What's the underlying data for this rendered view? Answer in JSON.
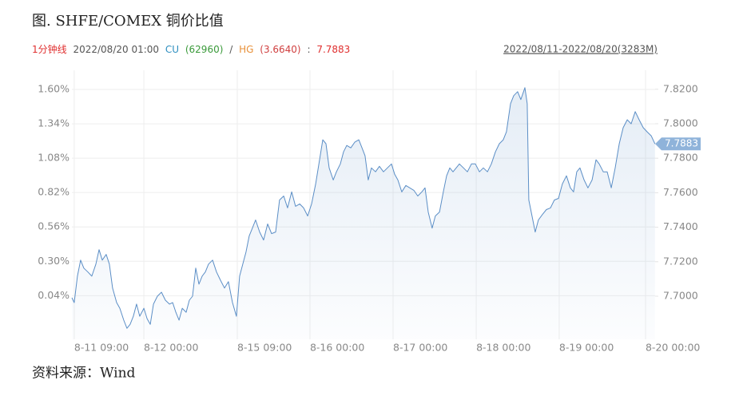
{
  "chart_data": {
    "type": "line",
    "title": "图. SHFE/COMEX 铜价比值",
    "info": {
      "period": "1分钟线",
      "time": "2022/08/20 01:00",
      "cu_label": "CU",
      "cu": "(62960)",
      "sep": "/",
      "hg_label": "HG",
      "hg": "(3.6640)",
      "colon": ":",
      "ratio": "7.7883"
    },
    "range": "2022/08/11-2022/08/20(3283M)",
    "source": "资料来源：Wind",
    "grid": true,
    "xlim": [
      0,
      3283
    ],
    "xticks": [
      {
        "value": 13,
        "label": "8-11 09:00"
      },
      {
        "value": 405,
        "label": "8-12 00:00"
      },
      {
        "value": 931,
        "label": "8-15 09:00"
      },
      {
        "value": 1340,
        "label": "8-16 00:00"
      },
      {
        "value": 1808,
        "label": "8-17 00:00"
      },
      {
        "value": 2276,
        "label": "8-18 00:00"
      },
      {
        "value": 2743,
        "label": "8-19 00:00"
      },
      {
        "value": 3229,
        "label": "8-20 00:00"
      }
    ],
    "ylim": [
      -0.29,
      1.745
    ],
    "yticks": [
      {
        "value": 0.04,
        "label": "0.04%"
      },
      {
        "value": 0.3,
        "label": "0.30%"
      },
      {
        "value": 0.56,
        "label": "0.56%"
      },
      {
        "value": 0.82,
        "label": "0.82%"
      },
      {
        "value": 1.08,
        "label": "1.08%"
      },
      {
        "value": 1.34,
        "label": "1.34%"
      },
      {
        "value": 1.6,
        "label": "1.60%"
      }
    ],
    "y2lim": [
      7.675,
      7.831
    ],
    "y2ticks": [
      {
        "value": 7.7,
        "label": "7.7000"
      },
      {
        "value": 7.72,
        "label": "7.7200"
      },
      {
        "value": 7.74,
        "label": "7.7400"
      },
      {
        "value": 7.76,
        "label": "7.7600"
      },
      {
        "value": 7.78,
        "label": "7.7800"
      },
      {
        "value": 7.8,
        "label": "7.8000"
      },
      {
        "value": 7.82,
        "label": "7.8200"
      }
    ],
    "x": [
      0,
      13,
      31,
      49,
      67,
      90,
      112,
      135,
      153,
      171,
      193,
      211,
      229,
      252,
      270,
      292,
      310,
      328,
      346,
      364,
      382,
      405,
      423,
      441,
      459,
      481,
      504,
      526,
      549,
      567,
      585,
      603,
      621,
      643,
      661,
      679,
      697,
      715,
      733,
      751,
      769,
      792,
      814,
      836,
      859,
      881,
      904,
      926,
      944,
      962,
      980,
      998,
      1016,
      1034,
      1057,
      1079,
      1102,
      1124,
      1147,
      1169,
      1192,
      1214,
      1237,
      1259,
      1282,
      1304,
      1327,
      1349,
      1372,
      1394,
      1412,
      1430,
      1448,
      1471,
      1489,
      1511,
      1529,
      1547,
      1570,
      1592,
      1615,
      1633,
      1650,
      1668,
      1686,
      1709,
      1731,
      1754,
      1776,
      1799,
      1817,
      1835,
      1857,
      1880,
      1902,
      1925,
      1947,
      1970,
      1988,
      2006,
      2028,
      2046,
      2069,
      2091,
      2109,
      2127,
      2145,
      2163,
      2181,
      2204,
      2226,
      2249,
      2271,
      2294,
      2316,
      2339,
      2361,
      2384,
      2406,
      2428,
      2446,
      2469,
      2487,
      2509,
      2527,
      2550,
      2563,
      2572,
      2590,
      2608,
      2626,
      2649,
      2671,
      2694,
      2716,
      2739,
      2761,
      2784,
      2806,
      2824,
      2842,
      2860,
      2883,
      2905,
      2928,
      2950,
      2968,
      2991,
      3013,
      3036,
      3058,
      3081,
      3103,
      3126,
      3148,
      3171,
      3193,
      3216,
      3238,
      3261,
      3282
    ],
    "series": [
      {
        "color": "#5b8ec6",
        "axis": "y2",
        "values": [
          7.6991,
          7.6963,
          7.7116,
          7.7209,
          7.7163,
          7.714,
          7.7116,
          7.7186,
          7.727,
          7.7209,
          7.7242,
          7.7186,
          7.7047,
          7.6963,
          7.693,
          7.6861,
          7.6814,
          7.6837,
          7.6884,
          7.6954,
          7.6884,
          7.693,
          7.687,
          7.6837,
          7.6954,
          7.7,
          7.7023,
          7.6977,
          7.6954,
          7.6963,
          7.6907,
          7.6861,
          7.693,
          7.6907,
          7.6977,
          7.7,
          7.7163,
          7.707,
          7.7116,
          7.714,
          7.7186,
          7.7209,
          7.714,
          7.7093,
          7.7047,
          7.7084,
          7.6963,
          7.6884,
          7.7116,
          7.7186,
          7.7256,
          7.7349,
          7.7395,
          7.7442,
          7.7372,
          7.7326,
          7.7419,
          7.7363,
          7.7372,
          7.7558,
          7.7581,
          7.7512,
          7.7605,
          7.7521,
          7.7535,
          7.7512,
          7.7465,
          7.7535,
          7.7651,
          7.7791,
          7.7907,
          7.7884,
          7.7744,
          7.7674,
          7.7721,
          7.7767,
          7.7837,
          7.7874,
          7.786,
          7.7893,
          7.7907,
          7.786,
          7.7814,
          7.7674,
          7.7744,
          7.7721,
          7.7753,
          7.7721,
          7.7744,
          7.7767,
          7.7707,
          7.7674,
          7.7605,
          7.7642,
          7.7628,
          7.7614,
          7.7581,
          7.7605,
          7.7628,
          7.7488,
          7.7395,
          7.7465,
          7.7488,
          7.7605,
          7.7698,
          7.7744,
          7.7721,
          7.7744,
          7.7767,
          7.7744,
          7.7721,
          7.7767,
          7.7767,
          7.7721,
          7.7744,
          7.7721,
          7.7767,
          7.7837,
          7.7884,
          7.7907,
          7.7953,
          7.8116,
          7.8163,
          7.8186,
          7.814,
          7.8209,
          7.8116,
          7.7558,
          7.7465,
          7.7372,
          7.7442,
          7.7474,
          7.7502,
          7.7512,
          7.7558,
          7.7567,
          7.7651,
          7.7698,
          7.7628,
          7.7605,
          7.7721,
          7.7744,
          7.7674,
          7.7628,
          7.7674,
          7.7791,
          7.7767,
          7.7721,
          7.7721,
          7.7628,
          7.7744,
          7.7884,
          7.7977,
          7.8023,
          7.8,
          7.807,
          7.8023,
          7.7977,
          7.7953,
          7.793,
          7.7883
        ]
      }
    ]
  }
}
